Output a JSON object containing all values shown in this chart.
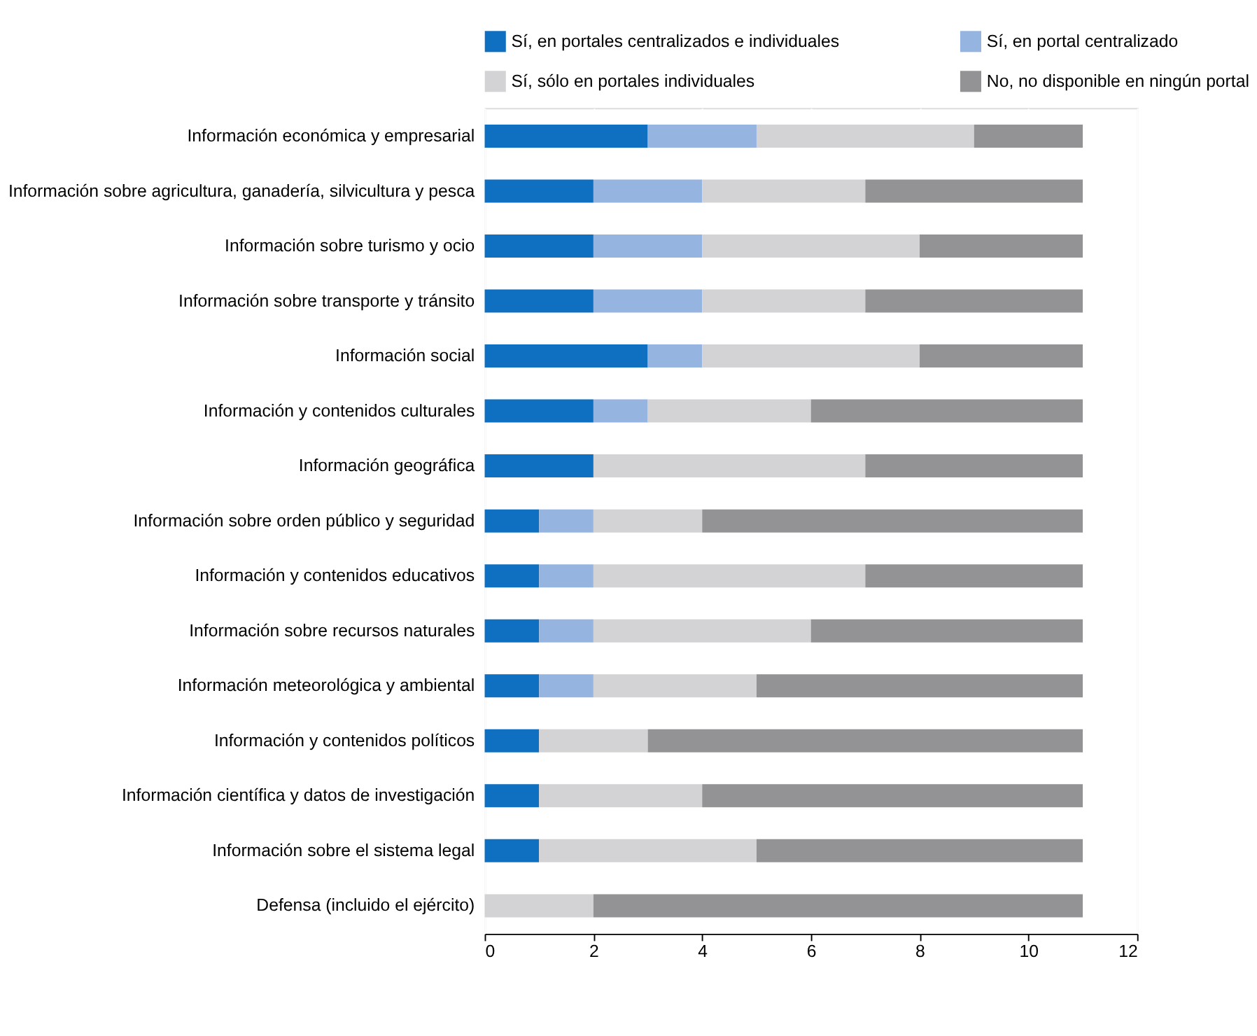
{
  "chart_data": {
    "type": "bar",
    "orientation": "horizontal",
    "stacked": true,
    "categories": [
      "Información económica y empresarial",
      "Información sobre agricultura, ganadería, silvicultura y pesca",
      "Información sobre turismo y ocio",
      "Información sobre transporte y tránsito",
      "Información social",
      "Información y contenidos culturales",
      "Información geográfica",
      "Información sobre orden público y seguridad",
      "Información y contenidos educativos",
      "Información sobre recursos naturales",
      "Información meteorológica y ambiental",
      "Información y contenidos políticos",
      "Información científica y datos de investigación",
      "Información sobre el sistema legal",
      "Defensa (incluido el ejército)"
    ],
    "series": [
      {
        "name": "Sí, en portales centralizados e individuales",
        "color": "#0f6fc0",
        "values": [
          3,
          2,
          2,
          2,
          3,
          2,
          2,
          1,
          1,
          1,
          1,
          1,
          1,
          1,
          0
        ]
      },
      {
        "name": "Sí, en portal centralizado",
        "color": "#96b4e0",
        "values": [
          2,
          2,
          2,
          2,
          1,
          1,
          0,
          1,
          1,
          1,
          1,
          0,
          0,
          0,
          0
        ]
      },
      {
        "name": "Sí, sólo en portales individuales",
        "color": "#d3d3d5",
        "values": [
          4,
          3,
          4,
          3,
          4,
          3,
          5,
          2,
          5,
          4,
          3,
          2,
          3,
          4,
          2
        ]
      },
      {
        "name": "No, no disponible en ningún portal",
        "color": "#939395",
        "values": [
          2,
          4,
          3,
          4,
          3,
          5,
          4,
          7,
          4,
          5,
          6,
          8,
          7,
          6,
          9
        ]
      }
    ],
    "xlim": [
      0,
      12
    ],
    "xticks": [
      0,
      2,
      4,
      6,
      8,
      10,
      12
    ],
    "grid": "x",
    "legend": "top"
  }
}
